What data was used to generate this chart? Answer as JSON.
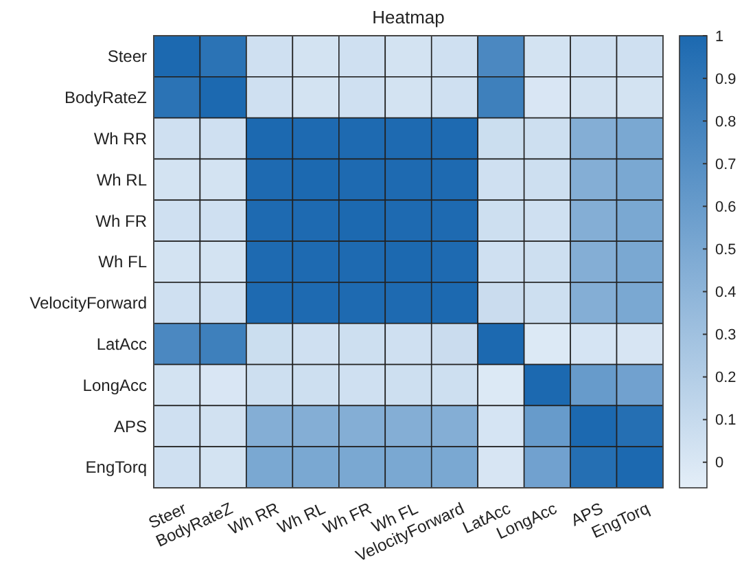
{
  "chart_data": {
    "type": "heatmap",
    "title": "Heatmap",
    "categories": [
      "Steer",
      "BodyRateZ",
      "Wh RR",
      "Wh RL",
      "Wh FR",
      "Wh FL",
      "VelocityForward",
      "LatAcc",
      "LongAcc",
      "APS",
      "EngTorq"
    ],
    "y_categories": [
      "Steer",
      "BodyRateZ",
      "Wh RR",
      "Wh RL",
      "Wh FR",
      "Wh FL",
      "VelocityForward",
      "LatAcc",
      "LongAcc",
      "APS",
      "EngTorq"
    ],
    "cells": [
      [
        1,
        0.92,
        0.05,
        0.03,
        0.05,
        0.03,
        0.05,
        0.75,
        0.03,
        0.05,
        0.05
      ],
      [
        0.92,
        1,
        0.05,
        0.03,
        0.05,
        0.03,
        0.05,
        0.82,
        0.0,
        0.04,
        0.03
      ],
      [
        0.05,
        0.05,
        1,
        0.99,
        0.99,
        0.99,
        0.99,
        0.07,
        0.06,
        0.45,
        0.5
      ],
      [
        0.03,
        0.03,
        0.99,
        1,
        0.99,
        0.99,
        0.99,
        0.05,
        0.06,
        0.45,
        0.5
      ],
      [
        0.05,
        0.05,
        0.99,
        0.99,
        1,
        0.99,
        0.99,
        0.06,
        0.05,
        0.45,
        0.5
      ],
      [
        0.03,
        0.03,
        0.99,
        0.99,
        0.99,
        1,
        0.99,
        0.05,
        0.06,
        0.45,
        0.5
      ],
      [
        0.05,
        0.05,
        0.99,
        0.99,
        0.99,
        0.99,
        1,
        0.08,
        0.06,
        0.45,
        0.5
      ],
      [
        0.75,
        0.82,
        0.07,
        0.05,
        0.06,
        0.05,
        0.08,
        1,
        -0.02,
        0.02,
        0.01
      ],
      [
        0.03,
        0.0,
        0.06,
        0.06,
        0.05,
        0.06,
        0.06,
        -0.02,
        1,
        0.6,
        0.55
      ],
      [
        0.05,
        0.04,
        0.45,
        0.45,
        0.45,
        0.45,
        0.45,
        0.02,
        0.6,
        1,
        0.95
      ],
      [
        0.05,
        0.03,
        0.5,
        0.5,
        0.5,
        0.5,
        0.5,
        0.01,
        0.55,
        0.95,
        1
      ]
    ],
    "clim": [
      -0.06,
      1
    ],
    "cticks": [
      0,
      0.1,
      0.2,
      0.3,
      0.4,
      0.5,
      0.6,
      0.7,
      0.8,
      0.9,
      1
    ]
  }
}
